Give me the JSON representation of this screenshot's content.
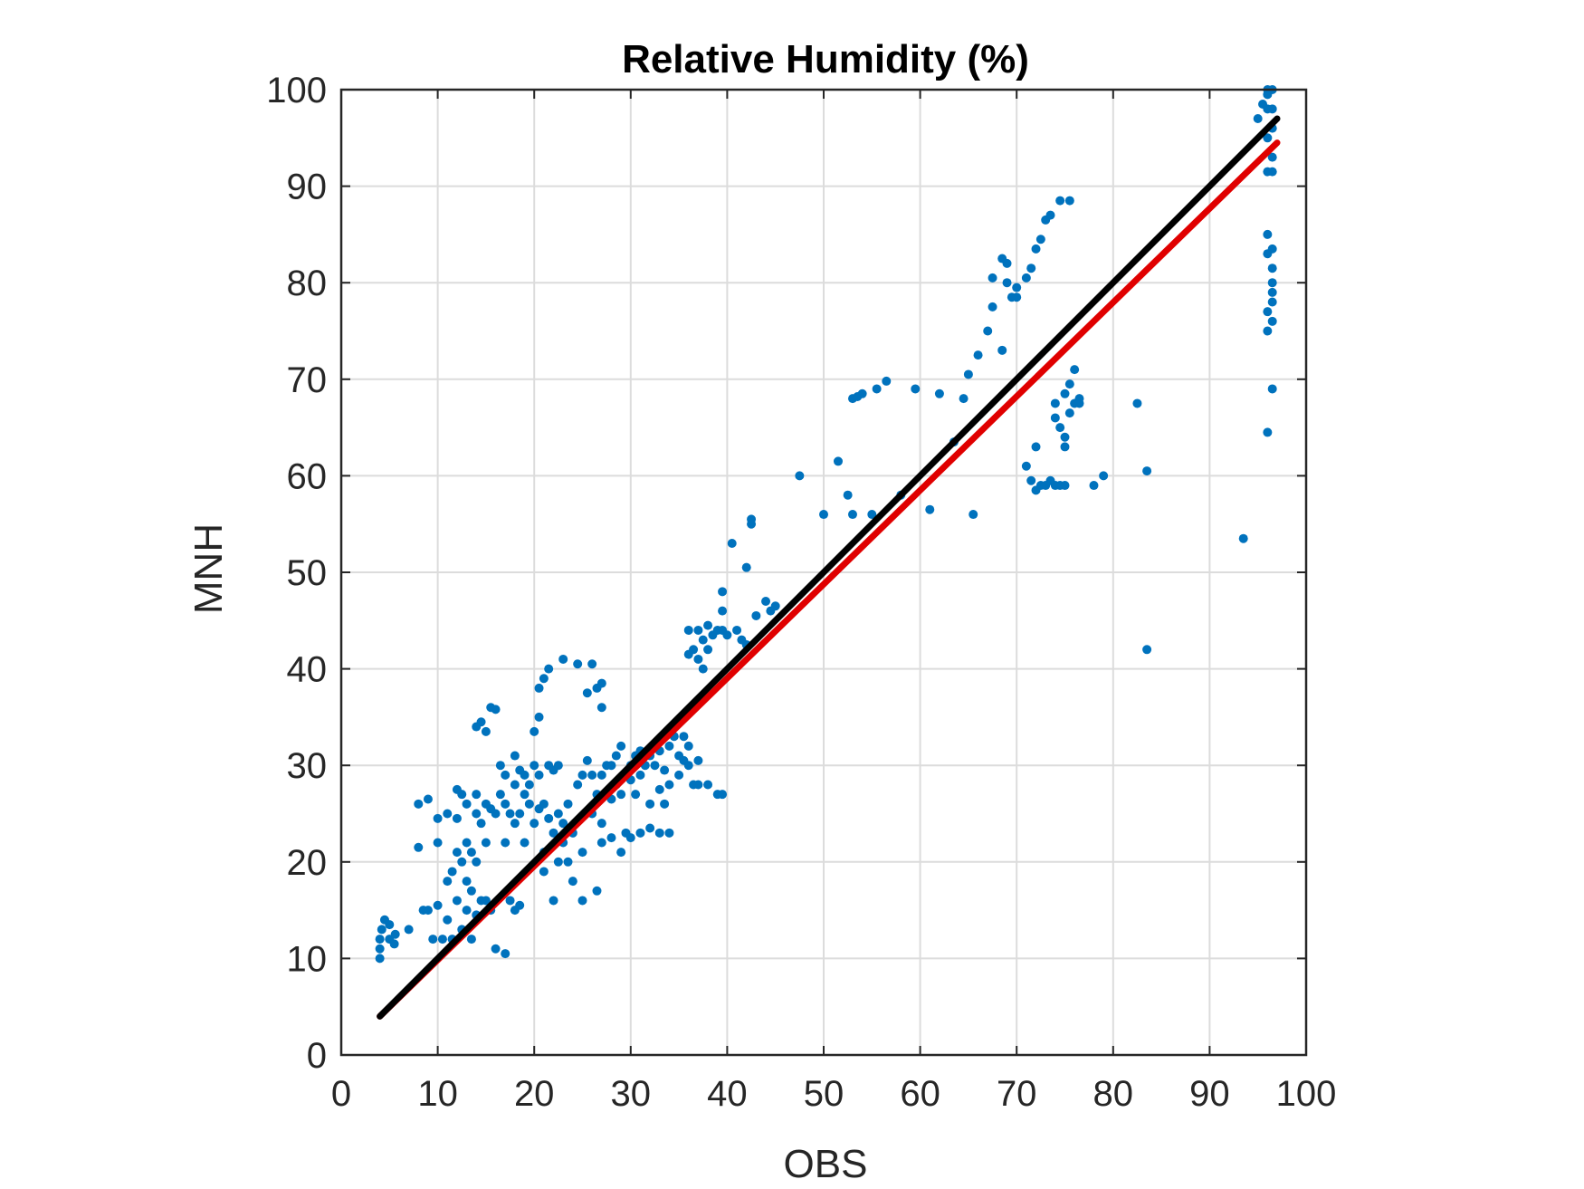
{
  "chart_data": {
    "type": "scatter",
    "title": "Relative Humidity (%)",
    "xlabel": "OBS",
    "ylabel": "MNH",
    "xlim": [
      0,
      100
    ],
    "ylim": [
      0,
      100
    ],
    "xticks": [
      0,
      10,
      20,
      30,
      40,
      50,
      60,
      70,
      80,
      90,
      100
    ],
    "yticks": [
      0,
      10,
      20,
      30,
      40,
      50,
      60,
      70,
      80,
      90,
      100
    ],
    "grid": true,
    "colors": {
      "points": "#0072BD",
      "one_to_one": "#000000",
      "fit": "#E00000",
      "grid": "#DCDCDC",
      "axes": "#262626"
    },
    "series": [
      {
        "type": "scatter",
        "points": [
          [
            4,
            10
          ],
          [
            4,
            11
          ],
          [
            4,
            12
          ],
          [
            4.2,
            13
          ],
          [
            4.5,
            14
          ],
          [
            5,
            13.5
          ],
          [
            5,
            12
          ],
          [
            5.5,
            11.5
          ],
          [
            5.6,
            12.5
          ],
          [
            7,
            13
          ],
          [
            8,
            21.5
          ],
          [
            8,
            26
          ],
          [
            8.5,
            15
          ],
          [
            9,
            26.5
          ],
          [
            9,
            15
          ],
          [
            9.5,
            12
          ],
          [
            10,
            24.5
          ],
          [
            10,
            22
          ],
          [
            10,
            15.5
          ],
          [
            10.5,
            12
          ],
          [
            11,
            25
          ],
          [
            11,
            18
          ],
          [
            11,
            14
          ],
          [
            11.5,
            19
          ],
          [
            11.5,
            12
          ],
          [
            12,
            27.5
          ],
          [
            12,
            24.5
          ],
          [
            12,
            21
          ],
          [
            12,
            16
          ],
          [
            12.5,
            27
          ],
          [
            12.5,
            20
          ],
          [
            12.5,
            13
          ],
          [
            13,
            26
          ],
          [
            13,
            22
          ],
          [
            13,
            18
          ],
          [
            13,
            15
          ],
          [
            13.5,
            21
          ],
          [
            13.5,
            17
          ],
          [
            13.5,
            12
          ],
          [
            14,
            34
          ],
          [
            14,
            27
          ],
          [
            14,
            25
          ],
          [
            14,
            20
          ],
          [
            14,
            14.5
          ],
          [
            14.5,
            34.5
          ],
          [
            14.5,
            24
          ],
          [
            14.5,
            16
          ],
          [
            15,
            33.5
          ],
          [
            15,
            26
          ],
          [
            15,
            22
          ],
          [
            15,
            16
          ],
          [
            15.5,
            36
          ],
          [
            15.5,
            25.5
          ],
          [
            15.5,
            15
          ],
          [
            16,
            35.8
          ],
          [
            16,
            25
          ],
          [
            16,
            11
          ],
          [
            16.5,
            30
          ],
          [
            16.5,
            27
          ],
          [
            17,
            29
          ],
          [
            17,
            26
          ],
          [
            17,
            22
          ],
          [
            17,
            10.5
          ],
          [
            17.5,
            25
          ],
          [
            17.5,
            16
          ],
          [
            18,
            31
          ],
          [
            18,
            28
          ],
          [
            18,
            24
          ],
          [
            18,
            15
          ],
          [
            18.5,
            29.5
          ],
          [
            18.5,
            25
          ],
          [
            18.5,
            15.5
          ],
          [
            19,
            29
          ],
          [
            19,
            27
          ],
          [
            19,
            22
          ],
          [
            19.5,
            26
          ],
          [
            19.5,
            28
          ],
          [
            20,
            33.5
          ],
          [
            20,
            30
          ],
          [
            20,
            24
          ],
          [
            20.5,
            38
          ],
          [
            20.5,
            35
          ],
          [
            20.5,
            29
          ],
          [
            20.5,
            25.5
          ],
          [
            21,
            39
          ],
          [
            21,
            26
          ],
          [
            21,
            21
          ],
          [
            21,
            19
          ],
          [
            21.5,
            40
          ],
          [
            21.5,
            30
          ],
          [
            21.5,
            24.5
          ],
          [
            22,
            29.5
          ],
          [
            22,
            23
          ],
          [
            22,
            16
          ],
          [
            22.5,
            30
          ],
          [
            22.5,
            25
          ],
          [
            22.5,
            20
          ],
          [
            23,
            41
          ],
          [
            23,
            24
          ],
          [
            23,
            22
          ],
          [
            23.5,
            26
          ],
          [
            23.5,
            20
          ],
          [
            24,
            23
          ],
          [
            24,
            18
          ],
          [
            24.5,
            28
          ],
          [
            24.5,
            40.5
          ],
          [
            25,
            29
          ],
          [
            25,
            21
          ],
          [
            25,
            16
          ],
          [
            25.5,
            30.5
          ],
          [
            25.5,
            37.5
          ],
          [
            26,
            40.5
          ],
          [
            26,
            29
          ],
          [
            26,
            25
          ],
          [
            26.5,
            38
          ],
          [
            26.5,
            27
          ],
          [
            26.5,
            17
          ],
          [
            27,
            38.5
          ],
          [
            27,
            36
          ],
          [
            27,
            29
          ],
          [
            27,
            24
          ],
          [
            27,
            22
          ],
          [
            27.5,
            30
          ],
          [
            27.5,
            27
          ],
          [
            28,
            30
          ],
          [
            28,
            26.5
          ],
          [
            28,
            22.5
          ],
          [
            28.5,
            31
          ],
          [
            28.5,
            28
          ],
          [
            29,
            32
          ],
          [
            29,
            27
          ],
          [
            29,
            21
          ],
          [
            29.5,
            29
          ],
          [
            29.5,
            23
          ],
          [
            30,
            30
          ],
          [
            30,
            28.5
          ],
          [
            30,
            22.5
          ],
          [
            30.5,
            31
          ],
          [
            30.5,
            27
          ],
          [
            31,
            31.5
          ],
          [
            31,
            29
          ],
          [
            31,
            23
          ],
          [
            31.5,
            30
          ],
          [
            32,
            31
          ],
          [
            32,
            26
          ],
          [
            32,
            23.5
          ],
          [
            32.5,
            30
          ],
          [
            33,
            31.5
          ],
          [
            33,
            27.5
          ],
          [
            33,
            23
          ],
          [
            33.5,
            29.5
          ],
          [
            33.5,
            26
          ],
          [
            34,
            32
          ],
          [
            34,
            28
          ],
          [
            34,
            23
          ],
          [
            34.5,
            33
          ],
          [
            35,
            31
          ],
          [
            35,
            29
          ],
          [
            35.5,
            33
          ],
          [
            35.5,
            30.5
          ],
          [
            36,
            44
          ],
          [
            36,
            41.5
          ],
          [
            36,
            32
          ],
          [
            36,
            30
          ],
          [
            36.5,
            42
          ],
          [
            36.5,
            28
          ],
          [
            37,
            44
          ],
          [
            37,
            41
          ],
          [
            37,
            30.5
          ],
          [
            37,
            28
          ],
          [
            37.5,
            43
          ],
          [
            37.5,
            40
          ],
          [
            38,
            44.5
          ],
          [
            38,
            42
          ],
          [
            38,
            28
          ],
          [
            38.5,
            43.5
          ],
          [
            39,
            44
          ],
          [
            39,
            27
          ],
          [
            39.5,
            48
          ],
          [
            39.5,
            46
          ],
          [
            39.5,
            44
          ],
          [
            39.5,
            27
          ],
          [
            40,
            43.5
          ],
          [
            40.5,
            53
          ],
          [
            41,
            44
          ],
          [
            41.5,
            43
          ],
          [
            42,
            50.5
          ],
          [
            42,
            42.5
          ],
          [
            42.5,
            55.5
          ],
          [
            42.5,
            55
          ],
          [
            43,
            45.5
          ],
          [
            44,
            47
          ],
          [
            44.5,
            46
          ],
          [
            45,
            46.5
          ],
          [
            47.5,
            60
          ],
          [
            50,
            56
          ],
          [
            51.5,
            61.5
          ],
          [
            52.5,
            58
          ],
          [
            53,
            68
          ],
          [
            53,
            56
          ],
          [
            53.5,
            68.2
          ],
          [
            54,
            68.5
          ],
          [
            55,
            56
          ],
          [
            55.5,
            69
          ],
          [
            56.5,
            69.8
          ],
          [
            58,
            58
          ],
          [
            59.5,
            69
          ],
          [
            61,
            56.5
          ],
          [
            62,
            68.5
          ],
          [
            63.5,
            63.5
          ],
          [
            64.5,
            68
          ],
          [
            65,
            70.5
          ],
          [
            65.5,
            56
          ],
          [
            66,
            72.5
          ],
          [
            67,
            75
          ],
          [
            67.5,
            77.5
          ],
          [
            67.5,
            80.5
          ],
          [
            68.5,
            82.5
          ],
          [
            68.5,
            73
          ],
          [
            69,
            82
          ],
          [
            69,
            80
          ],
          [
            69.5,
            78.5
          ],
          [
            70,
            79.5
          ],
          [
            70,
            78.5
          ],
          [
            71,
            61
          ],
          [
            71,
            80.5
          ],
          [
            71.5,
            81.5
          ],
          [
            71.5,
            59.5
          ],
          [
            72,
            83.5
          ],
          [
            72,
            63
          ],
          [
            72,
            58.5
          ],
          [
            72.5,
            84.5
          ],
          [
            72.5,
            59
          ],
          [
            73,
            86.5
          ],
          [
            73,
            59
          ],
          [
            73.5,
            87
          ],
          [
            73.5,
            59.5
          ],
          [
            74,
            66
          ],
          [
            74,
            59
          ],
          [
            74,
            67.5
          ],
          [
            74.5,
            88.5
          ],
          [
            74.5,
            65
          ],
          [
            74.5,
            59
          ],
          [
            75,
            68.5
          ],
          [
            75,
            64
          ],
          [
            75,
            63
          ],
          [
            75,
            59
          ],
          [
            75.5,
            88.5
          ],
          [
            75.5,
            69.5
          ],
          [
            75.5,
            66.5
          ],
          [
            76,
            71
          ],
          [
            76,
            67.5
          ],
          [
            76.5,
            68
          ],
          [
            76.5,
            67.5
          ],
          [
            78,
            59
          ],
          [
            79,
            60
          ],
          [
            82.5,
            67.5
          ],
          [
            83.5,
            60.5
          ],
          [
            83.5,
            42
          ],
          [
            93.5,
            53.5
          ],
          [
            95,
            97
          ],
          [
            95.5,
            98.5
          ],
          [
            96,
            100
          ],
          [
            96,
            99.5
          ],
          [
            96,
            98
          ],
          [
            96,
            95
          ],
          [
            96,
            91.5
          ],
          [
            96,
            85
          ],
          [
            96,
            83
          ],
          [
            96,
            77
          ],
          [
            96,
            75
          ],
          [
            96,
            64.5
          ],
          [
            96.5,
            100
          ],
          [
            96.5,
            98
          ],
          [
            96.5,
            96
          ],
          [
            96.5,
            93
          ],
          [
            96.5,
            91.5
          ],
          [
            96.5,
            83.5
          ],
          [
            96.5,
            81.5
          ],
          [
            96.5,
            80
          ],
          [
            96.5,
            79
          ],
          [
            96.5,
            78
          ],
          [
            96.5,
            76
          ],
          [
            96.5,
            69
          ]
        ]
      },
      {
        "type": "line",
        "x": [
          4,
          97
        ],
        "y": [
          4,
          97
        ]
      },
      {
        "type": "line",
        "x": [
          4,
          97
        ],
        "y": [
          4,
          94.5
        ]
      }
    ]
  }
}
